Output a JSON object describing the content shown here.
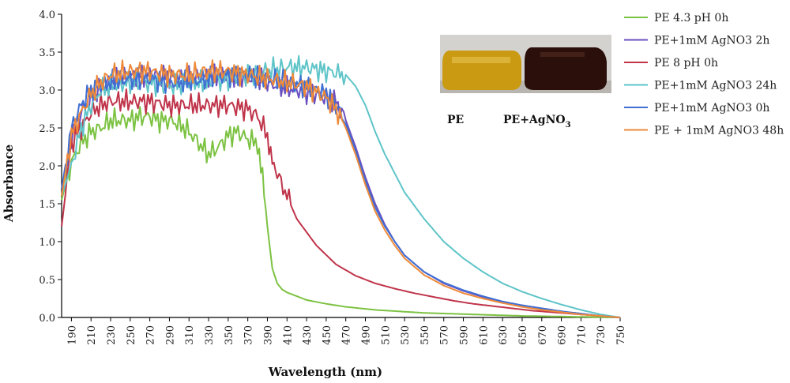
{
  "chart_data": {
    "type": "line",
    "title": "",
    "xlabel": "Wavelength (nm)",
    "ylabel": "Absorbance",
    "xlim": [
      180,
      750
    ],
    "ylim": [
      0,
      4.0
    ],
    "x_ticks": [
      190,
      210,
      230,
      250,
      270,
      290,
      310,
      330,
      350,
      370,
      390,
      410,
      430,
      450,
      470,
      490,
      510,
      530,
      550,
      570,
      590,
      610,
      630,
      650,
      670,
      690,
      710,
      730,
      750
    ],
    "y_ticks": [
      0.0,
      0.5,
      1.0,
      1.5,
      2.0,
      2.5,
      3.0,
      3.5,
      4.0
    ],
    "y_tick_labels": [
      "0.0",
      "0.5",
      "1.0",
      "1.5",
      "2.0",
      "2.5",
      "3.0",
      "3.5",
      "4.0"
    ],
    "grid": false,
    "legend_position": "right",
    "series": [
      {
        "name": "PE 4.3 pH 0h",
        "color": "#7cc242",
        "x": [
          180,
          190,
          200,
          210,
          220,
          230,
          240,
          250,
          260,
          270,
          280,
          290,
          300,
          310,
          320,
          330,
          340,
          350,
          360,
          370,
          380,
          385,
          390,
          395,
          400,
          405,
          410,
          420,
          430,
          450,
          470,
          500,
          550,
          600,
          650,
          700,
          750
        ],
        "y": [
          1.55,
          2.05,
          2.3,
          2.45,
          2.5,
          2.6,
          2.6,
          2.6,
          2.65,
          2.65,
          2.6,
          2.6,
          2.55,
          2.45,
          2.3,
          2.15,
          2.25,
          2.4,
          2.45,
          2.35,
          2.3,
          1.9,
          1.2,
          0.65,
          0.45,
          0.37,
          0.33,
          0.28,
          0.23,
          0.18,
          0.14,
          0.1,
          0.06,
          0.04,
          0.02,
          0.01,
          0.0
        ]
      },
      {
        "name": "PE+1mM AgNO3 2h",
        "color": "#6a4fbf",
        "x": [
          180,
          190,
          200,
          210,
          220,
          230,
          240,
          260,
          280,
          300,
          320,
          340,
          360,
          380,
          400,
          420,
          440,
          460,
          470,
          480,
          490,
          500,
          510,
          520,
          530,
          550,
          570,
          590,
          610,
          630,
          650,
          670,
          690,
          710,
          730,
          750
        ],
        "y": [
          1.6,
          2.4,
          2.7,
          2.9,
          3.05,
          3.1,
          3.15,
          3.2,
          3.2,
          3.15,
          3.15,
          3.2,
          3.2,
          3.15,
          3.05,
          3.0,
          2.95,
          2.85,
          2.6,
          2.25,
          1.85,
          1.5,
          1.22,
          1.0,
          0.82,
          0.6,
          0.45,
          0.35,
          0.27,
          0.21,
          0.16,
          0.12,
          0.08,
          0.05,
          0.02,
          0.0
        ]
      },
      {
        "name": "PE 8 pH 0h",
        "color": "#c0344a",
        "x": [
          180,
          190,
          200,
          210,
          220,
          230,
          250,
          270,
          290,
          310,
          330,
          350,
          370,
          380,
          390,
          395,
          400,
          410,
          420,
          440,
          460,
          480,
          500,
          520,
          540,
          560,
          580,
          600,
          620,
          640,
          660,
          680,
          700,
          720,
          740,
          750
        ],
        "y": [
          1.2,
          2.3,
          2.5,
          2.7,
          2.8,
          2.85,
          2.85,
          2.85,
          2.8,
          2.8,
          2.8,
          2.8,
          2.75,
          2.65,
          2.4,
          2.15,
          1.9,
          1.6,
          1.3,
          0.95,
          0.7,
          0.55,
          0.45,
          0.38,
          0.32,
          0.27,
          0.22,
          0.18,
          0.15,
          0.12,
          0.09,
          0.07,
          0.05,
          0.03,
          0.01,
          0.0
        ]
      },
      {
        "name": "PE+1mM AgNO3 24h",
        "color": "#5ec4c8",
        "x": [
          180,
          190,
          200,
          210,
          220,
          230,
          250,
          270,
          290,
          310,
          330,
          350,
          370,
          390,
          410,
          430,
          450,
          470,
          480,
          490,
          500,
          510,
          520,
          530,
          550,
          570,
          590,
          610,
          630,
          650,
          670,
          690,
          710,
          730,
          750
        ],
        "y": [
          1.6,
          2.0,
          2.5,
          2.8,
          3.0,
          3.05,
          3.1,
          3.1,
          3.05,
          3.1,
          3.1,
          3.15,
          3.2,
          3.25,
          3.3,
          3.3,
          3.25,
          3.2,
          3.05,
          2.8,
          2.45,
          2.15,
          1.9,
          1.65,
          1.3,
          1.0,
          0.78,
          0.6,
          0.45,
          0.34,
          0.25,
          0.17,
          0.1,
          0.04,
          0.0
        ]
      },
      {
        "name": "PE+1mM AgNO3 0h",
        "color": "#3f6fd3",
        "x": [
          180,
          190,
          200,
          210,
          220,
          230,
          250,
          270,
          290,
          310,
          330,
          350,
          370,
          390,
          410,
          430,
          450,
          460,
          470,
          480,
          490,
          500,
          510,
          520,
          530,
          550,
          570,
          590,
          610,
          630,
          650,
          670,
          690,
          710,
          730,
          750
        ],
        "y": [
          1.7,
          2.5,
          2.8,
          3.0,
          3.05,
          3.1,
          3.15,
          3.15,
          3.1,
          3.1,
          3.15,
          3.2,
          3.2,
          3.15,
          3.1,
          3.05,
          2.95,
          2.8,
          2.55,
          2.2,
          1.8,
          1.45,
          1.2,
          1.0,
          0.82,
          0.6,
          0.46,
          0.36,
          0.28,
          0.21,
          0.16,
          0.12,
          0.08,
          0.05,
          0.02,
          0.0
        ]
      },
      {
        "name": "PE + 1mM AgNO3 48h",
        "color": "#ee8a3a",
        "x": [
          180,
          190,
          200,
          210,
          220,
          230,
          250,
          270,
          290,
          310,
          330,
          350,
          370,
          390,
          410,
          430,
          450,
          460,
          470,
          480,
          490,
          500,
          510,
          520,
          530,
          550,
          570,
          590,
          610,
          630,
          650,
          670,
          690,
          710,
          730,
          750
        ],
        "y": [
          1.6,
          2.4,
          2.7,
          2.95,
          3.1,
          3.2,
          3.25,
          3.25,
          3.2,
          3.2,
          3.25,
          3.25,
          3.2,
          3.15,
          3.1,
          3.05,
          2.9,
          2.75,
          2.5,
          2.15,
          1.75,
          1.4,
          1.15,
          0.95,
          0.78,
          0.56,
          0.42,
          0.32,
          0.25,
          0.19,
          0.14,
          0.1,
          0.07,
          0.04,
          0.02,
          0.0
        ]
      }
    ],
    "inset": {
      "labels": [
        "PE",
        "PE+AgNO",
        "3"
      ]
    }
  }
}
